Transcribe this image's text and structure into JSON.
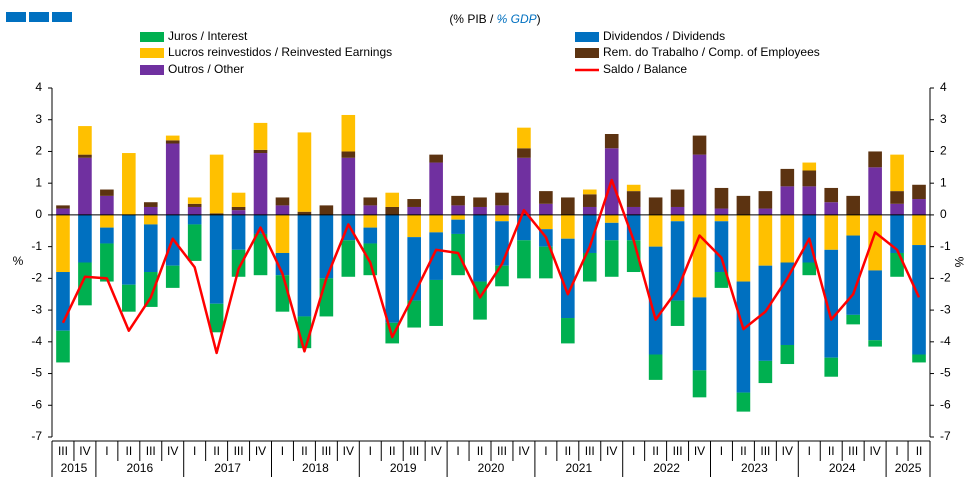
{
  "chart_data": {
    "type": "bar",
    "title": [
      "(% PIB / ",
      "% GDP",
      ")"
    ],
    "y_label": "%",
    "y2_label": "%",
    "categories": [
      "III",
      "IV",
      "I",
      "II",
      "III",
      "IV",
      "I",
      "II",
      "III",
      "IV",
      "I",
      "II",
      "III",
      "IV",
      "I",
      "II",
      "III",
      "IV",
      "I",
      "II",
      "III",
      "IV",
      "I",
      "II",
      "III",
      "IV",
      "I",
      "II",
      "III",
      "IV",
      "I",
      "II",
      "III",
      "IV",
      "I",
      "II",
      "III",
      "IV",
      "I",
      "II"
    ],
    "years": [
      "2015",
      "2016",
      "2017",
      "2018",
      "2019",
      "2020",
      "2021",
      "2022",
      "2023",
      "2024",
      "2025"
    ],
    "ylim": [
      -7,
      4
    ],
    "yticks": [
      -7,
      -6,
      -5,
      -4,
      -3,
      -2,
      -1,
      0,
      1,
      2,
      3,
      4
    ],
    "y2lim": [
      -7,
      4
    ],
    "y2ticks": [
      -7,
      -6,
      -5,
      -4,
      -3,
      -2,
      -1,
      0,
      1,
      2,
      3,
      4
    ],
    "grid": false,
    "series": [
      {
        "name": "Juros / Interest",
        "color": "#00b050",
        "values": [
          -1.0,
          -1.35,
          -1.2,
          -0.85,
          -1.1,
          -0.7,
          -1.15,
          -0.9,
          -0.85,
          -1.3,
          -1.15,
          -1.0,
          -1.2,
          -1.15,
          -1.0,
          -0.65,
          -0.85,
          -1.45,
          -1.3,
          -1.2,
          -0.65,
          -1.2,
          -1.0,
          -0.8,
          -0.9,
          -1.15,
          -1.0,
          -0.8,
          -0.8,
          -0.85,
          -0.5,
          -0.6,
          -0.7,
          -0.6,
          -0.4,
          -0.6,
          -0.3,
          -0.2,
          -0.75,
          -0.25
        ]
      },
      {
        "name": "Dividendos / Dividends",
        "color": "#0070c0",
        "values": [
          -1.85,
          -1.5,
          -0.5,
          -2.2,
          -1.5,
          -1.6,
          -0.3,
          -2.8,
          -1.1,
          -0.6,
          -0.7,
          -3.2,
          -2.0,
          -0.8,
          -0.5,
          -3.4,
          -2.0,
          -1.5,
          -0.45,
          -2.1,
          -1.4,
          -0.8,
          -0.55,
          -2.5,
          -1.2,
          -0.55,
          -0.8,
          -3.4,
          -2.5,
          -2.3,
          -1.6,
          -3.5,
          -3.0,
          -2.6,
          -1.5,
          -3.4,
          -2.5,
          -2.2,
          -1.2,
          -3.45
        ]
      },
      {
        "name": "Lucros reinvestidos / Reinvested Earnings",
        "color": "#ffc000",
        "values": [
          -1.8,
          0.9,
          -0.4,
          1.95,
          -0.3,
          0.15,
          0.2,
          1.85,
          0.45,
          0.85,
          -1.2,
          2.5,
          0,
          1.15,
          -0.4,
          0.45,
          -0.7,
          -0.55,
          -0.15,
          0,
          -0.2,
          0.65,
          -0.45,
          -0.75,
          0.15,
          -0.25,
          0.2,
          -1.0,
          -0.2,
          -2.6,
          -0.2,
          -2.1,
          -1.6,
          -1.5,
          0.25,
          -1.1,
          -0.65,
          -1.75,
          1.15,
          -0.95
        ]
      },
      {
        "name": "Rem. do Trabalho / Comp. of Employees",
        "color": "#5c3311",
        "values": [
          0.1,
          0.1,
          0.2,
          0,
          0.15,
          0.1,
          0.1,
          0.05,
          0.1,
          0.1,
          0.25,
          0.1,
          0.3,
          0.2,
          0.25,
          0.25,
          0.25,
          0.25,
          0.3,
          0.3,
          0.4,
          0.3,
          0.4,
          0.55,
          0.4,
          0.45,
          0.5,
          0.55,
          0.55,
          0.6,
          0.65,
          0.6,
          0.55,
          0.55,
          0.5,
          0.45,
          0.6,
          0.5,
          0.4,
          0.45
        ]
      },
      {
        "name": "Outros / Other",
        "color": "#7030a0",
        "values": [
          0.2,
          1.8,
          0.6,
          0,
          0.25,
          2.25,
          0.25,
          0,
          0.15,
          1.95,
          0.3,
          0,
          0,
          1.8,
          0.3,
          0,
          0.25,
          1.65,
          0.3,
          0.25,
          0.3,
          1.8,
          0.35,
          0,
          0.25,
          2.1,
          0.25,
          0,
          0.25,
          1.9,
          0.2,
          0,
          0.2,
          0.9,
          0.9,
          0.4,
          0,
          1.5,
          0.35,
          0.5
        ]
      },
      {
        "name": "Saldo / Balance",
        "color": "#ff0000",
        "type": "line",
        "values": [
          -3.4,
          -1.95,
          -2.0,
          -3.65,
          -2.6,
          -0.75,
          -1.65,
          -4.35,
          -1.7,
          -0.4,
          -1.85,
          -4.3,
          -2.0,
          -0.3,
          -1.5,
          -3.85,
          -2.5,
          -1.1,
          -1.2,
          -2.6,
          -1.55,
          0.15,
          -0.7,
          -2.5,
          -1.0,
          1.1,
          -0.8,
          -3.3,
          -2.35,
          -0.65,
          -1.35,
          -3.6,
          -3.05,
          -2.0,
          -0.75,
          -3.3,
          -2.5,
          -0.55,
          -1.1,
          -2.6
        ]
      }
    ]
  }
}
